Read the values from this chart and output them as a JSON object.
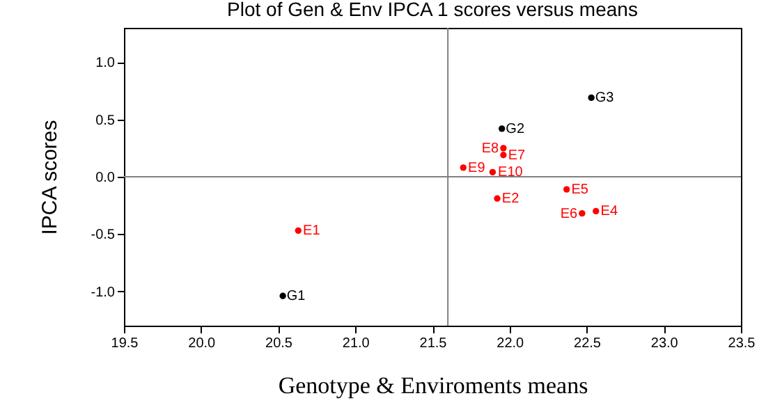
{
  "chart_data": {
    "type": "scatter",
    "title": "Plot of Gen & Env IPCA 1 scores versus means",
    "xlabel": "Genotype & Enviroments means",
    "ylabel": "IPCA scores",
    "xlim": [
      19.5,
      23.5
    ],
    "ylim": [
      -1.3,
      1.3
    ],
    "xticks": [
      {
        "value": 19.5,
        "label": "19.5"
      },
      {
        "value": 20,
        "label": "20.0"
      },
      {
        "value": 20.5,
        "label": "20.5"
      },
      {
        "value": 21,
        "label": "21.0"
      },
      {
        "value": 21.5,
        "label": "21.5"
      },
      {
        "value": 22,
        "label": "22.0"
      },
      {
        "value": 22.5,
        "label": "22.5"
      },
      {
        "value": 23,
        "label": "23.0"
      },
      {
        "value": 23.5,
        "label": "23.5"
      }
    ],
    "yticks": [
      {
        "value": -1,
        "label": "-1.0"
      },
      {
        "value": -0.5,
        "label": "-0.5"
      },
      {
        "value": 0,
        "label": "0.0"
      },
      {
        "value": 0.5,
        "label": "0.5"
      },
      {
        "value": 1,
        "label": "1.0"
      }
    ],
    "marker": "circle",
    "grid": false,
    "ref_lines": [
      {
        "axis": "x",
        "value": 21.6,
        "color": "#808080"
      },
      {
        "axis": "y",
        "value": 0,
        "color": "#808080"
      }
    ],
    "series": [
      {
        "color": "#000000",
        "x": [
          20.53,
          21.95,
          22.53
        ],
        "values": [
          -1.04,
          0.42,
          0.69
        ],
        "value_labels": [
          "G1",
          "G2",
          "G3"
        ]
      },
      {
        "color": "#ff0000",
        "x": [
          20.63,
          21.92,
          22.56,
          22.37,
          22.47,
          21.96,
          21.96,
          21.7,
          21.89
        ],
        "values": [
          -0.47,
          -0.19,
          -0.3,
          -0.11,
          -0.32,
          0.19,
          0.25,
          0.08,
          0.04
        ],
        "value_labels": [
          "E1",
          "E2",
          "E4",
          "E5",
          "E6",
          "E7",
          "E8",
          "E9",
          "E10"
        ]
      }
    ]
  }
}
